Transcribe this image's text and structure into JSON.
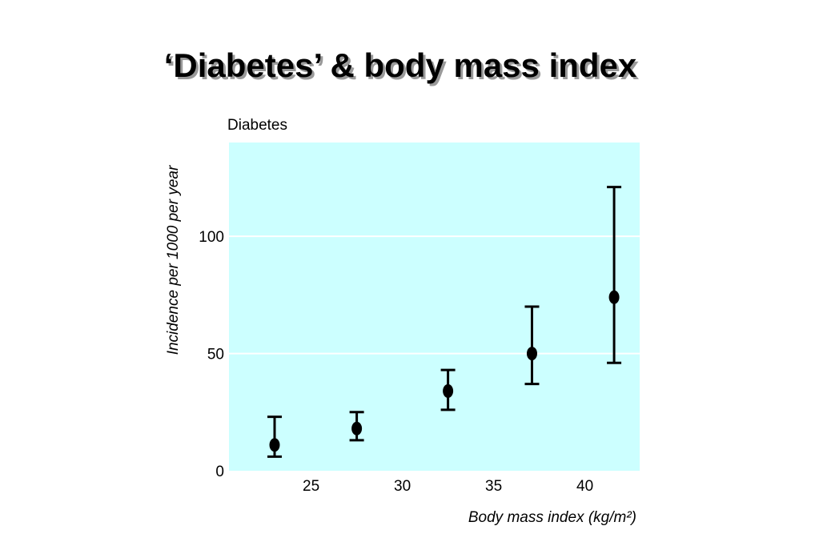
{
  "slide": {
    "title": "‘Diabetes’ & body mass index"
  },
  "chart_data": {
    "type": "scatter",
    "title": "Diabetes",
    "xlabel": "Body mass index (kg/m²)",
    "ylabel": "Incidence per 1000 per year",
    "xlim": [
      20.5,
      43
    ],
    "ylim": [
      0,
      140
    ],
    "x_ticks": [
      25,
      30,
      35,
      40
    ],
    "y_ticks": [
      0,
      50,
      100
    ],
    "grid": "horizontal",
    "background_color": "#ccffff",
    "mark_color": "#000000",
    "points": [
      {
        "x": 23.0,
        "y": 11,
        "low": 6,
        "high": 23
      },
      {
        "x": 27.5,
        "y": 18,
        "low": 13,
        "high": 25
      },
      {
        "x": 32.5,
        "y": 34,
        "low": 26,
        "high": 43
      },
      {
        "x": 37.1,
        "y": 50,
        "low": 37,
        "high": 70
      },
      {
        "x": 41.6,
        "y": 74,
        "low": 46,
        "high": 121
      }
    ]
  }
}
